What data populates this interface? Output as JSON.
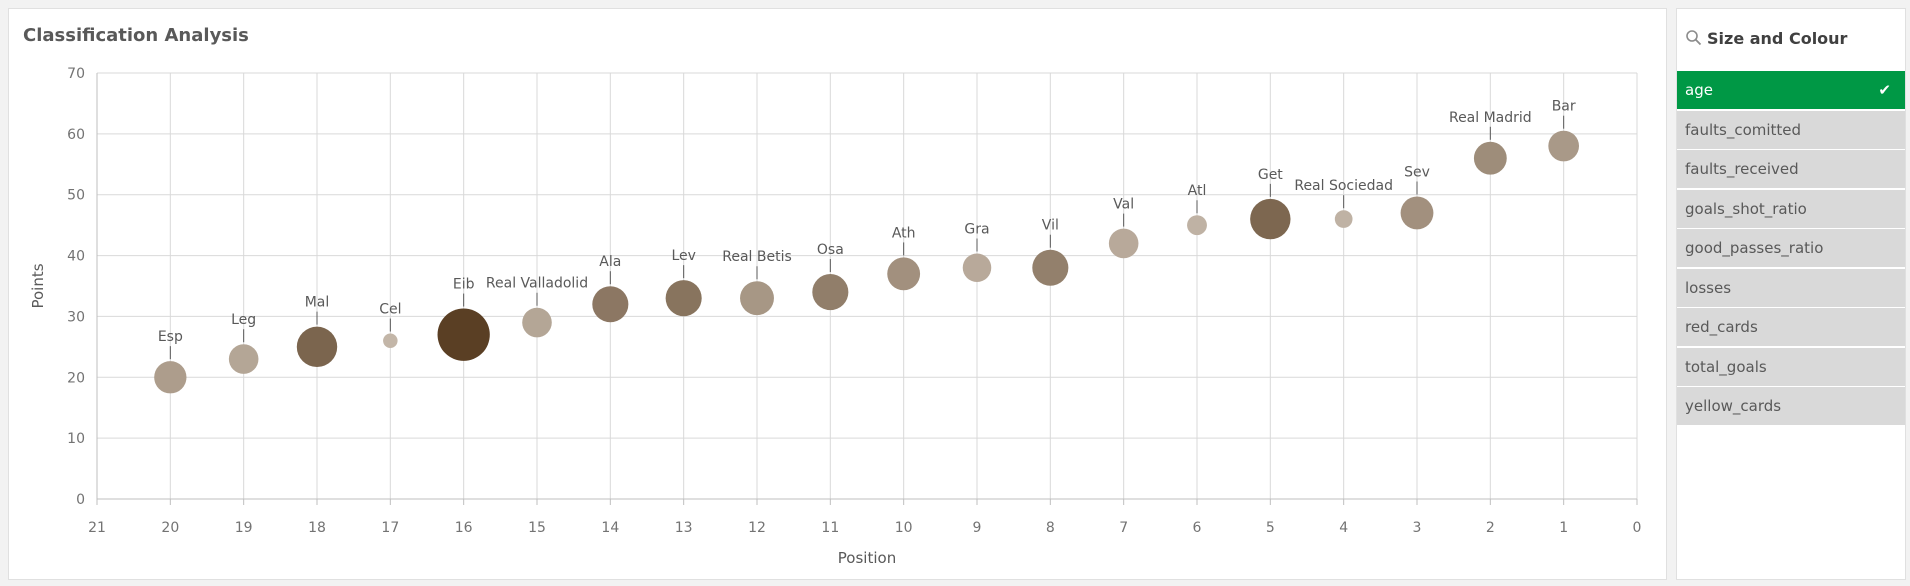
{
  "chart_panel": {
    "title": "Classification Analysis"
  },
  "filter_panel": {
    "title": "Size and Colour",
    "items": [
      {
        "label": "age",
        "selected": true
      },
      {
        "label": "faults_comitted",
        "selected": false
      },
      {
        "label": "faults_received",
        "selected": false
      },
      {
        "label": "goals_shot_ratio",
        "selected": false
      },
      {
        "label": "good_passes_ratio",
        "selected": false
      },
      {
        "label": "losses",
        "selected": false
      },
      {
        "label": "red_cards",
        "selected": false
      },
      {
        "label": "total_goals",
        "selected": false
      },
      {
        "label": "yellow_cards",
        "selected": false
      }
    ],
    "selected_color": "#009845",
    "item_color": "#d9d9d9"
  },
  "chart_data": {
    "type": "scatter",
    "title": "Classification Analysis",
    "xlabel": "Position",
    "ylabel": "Points",
    "xlim": [
      21,
      0
    ],
    "x_reversed": true,
    "ylim": [
      0,
      70
    ],
    "x_ticks": [
      21,
      20,
      19,
      18,
      17,
      16,
      15,
      14,
      13,
      12,
      11,
      10,
      9,
      8,
      7,
      6,
      5,
      4,
      3,
      2,
      1,
      0
    ],
    "y_ticks": [
      0,
      10,
      20,
      30,
      40,
      50,
      60,
      70
    ],
    "grid": true,
    "color_scale": [
      "#c8bcaf",
      "#5a3f24"
    ],
    "points": [
      {
        "label": "Esp",
        "x": 20,
        "y": 20,
        "size": 0.45,
        "shade": 0.25
      },
      {
        "label": "Leg",
        "x": 19,
        "y": 23,
        "size": 0.4,
        "shade": 0.18
      },
      {
        "label": "Mal",
        "x": 18,
        "y": 25,
        "size": 0.6,
        "shade": 0.7
      },
      {
        "label": "Cel",
        "x": 17,
        "y": 26,
        "size": 0.12,
        "shade": 0.05
      },
      {
        "label": "Eib",
        "x": 16,
        "y": 27,
        "size": 0.82,
        "shade": 1.0
      },
      {
        "label": "Real Valladolid",
        "x": 15,
        "y": 29,
        "size": 0.4,
        "shade": 0.18
      },
      {
        "label": "Ala",
        "x": 14,
        "y": 32,
        "size": 0.52,
        "shade": 0.55
      },
      {
        "label": "Lev",
        "x": 13,
        "y": 33,
        "size": 0.52,
        "shade": 0.58
      },
      {
        "label": "Real Betis",
        "x": 12,
        "y": 33,
        "size": 0.48,
        "shade": 0.3
      },
      {
        "label": "Osa",
        "x": 11,
        "y": 34,
        "size": 0.52,
        "shade": 0.5
      },
      {
        "label": "Ath",
        "x": 10,
        "y": 37,
        "size": 0.46,
        "shade": 0.35
      },
      {
        "label": "Gra",
        "x": 9,
        "y": 38,
        "size": 0.38,
        "shade": 0.15
      },
      {
        "label": "Vil",
        "x": 8,
        "y": 38,
        "size": 0.52,
        "shade": 0.48
      },
      {
        "label": "Val",
        "x": 7,
        "y": 42,
        "size": 0.4,
        "shade": 0.15
      },
      {
        "label": "Atl",
        "x": 6,
        "y": 45,
        "size": 0.22,
        "shade": 0.08
      },
      {
        "label": "Get",
        "x": 5,
        "y": 46,
        "size": 0.6,
        "shade": 0.68
      },
      {
        "label": "Real Sociedad",
        "x": 4,
        "y": 46,
        "size": 0.18,
        "shade": 0.08
      },
      {
        "label": "Sev",
        "x": 3,
        "y": 47,
        "size": 0.46,
        "shade": 0.35
      },
      {
        "label": "Real Madrid",
        "x": 2,
        "y": 56,
        "size": 0.46,
        "shade": 0.38
      },
      {
        "label": "Bar",
        "x": 1,
        "y": 58,
        "size": 0.42,
        "shade": 0.28
      }
    ]
  }
}
